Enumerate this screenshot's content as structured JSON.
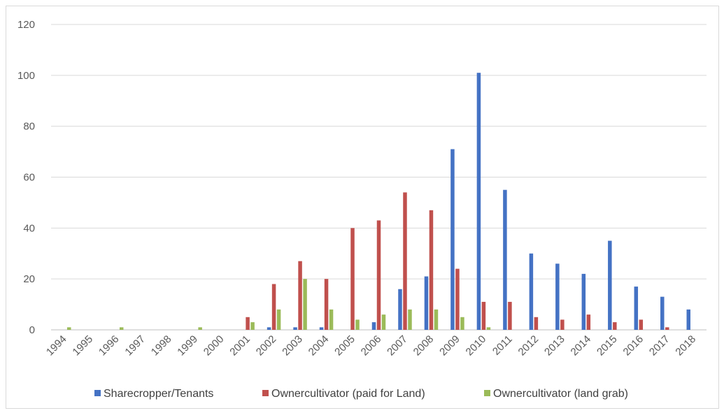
{
  "chart_data": {
    "type": "bar",
    "title": "",
    "xlabel": "",
    "ylabel": "",
    "ylim": [
      0,
      120
    ],
    "yticks": [
      0,
      20,
      40,
      60,
      80,
      100,
      120
    ],
    "grid": true,
    "legend_position": "bottom",
    "categories": [
      "1994",
      "1995",
      "1996",
      "1997",
      "1998",
      "1999",
      "2000",
      "2001",
      "2002",
      "2003",
      "2004",
      "2005",
      "2006",
      "2007",
      "2008",
      "2009",
      "2010",
      "2011",
      "2012",
      "2013",
      "2014",
      "2015",
      "2016",
      "2017",
      "2018"
    ],
    "series": [
      {
        "name": "Sharecropper/Tenants",
        "color": "#4472c4",
        "values": [
          0,
          0,
          0,
          0,
          0,
          0,
          0,
          0,
          1,
          1,
          1,
          0,
          3,
          16,
          21,
          71,
          101,
          55,
          30,
          26,
          22,
          35,
          17,
          13,
          8
        ]
      },
      {
        "name": "Ownercultivator (paid for Land)",
        "color": "#c0504d",
        "values": [
          0,
          0,
          0,
          0,
          0,
          0,
          0,
          5,
          18,
          27,
          20,
          40,
          43,
          54,
          47,
          24,
          11,
          11,
          5,
          4,
          6,
          3,
          4,
          1,
          0
        ]
      },
      {
        "name": "Ownercultivator (land grab)",
        "color": "#9bbb59",
        "values": [
          1,
          0,
          1,
          0,
          0,
          1,
          0,
          3,
          8,
          20,
          8,
          4,
          6,
          8,
          8,
          5,
          1,
          0,
          0,
          0,
          0,
          0,
          0,
          0,
          0
        ]
      }
    ]
  }
}
